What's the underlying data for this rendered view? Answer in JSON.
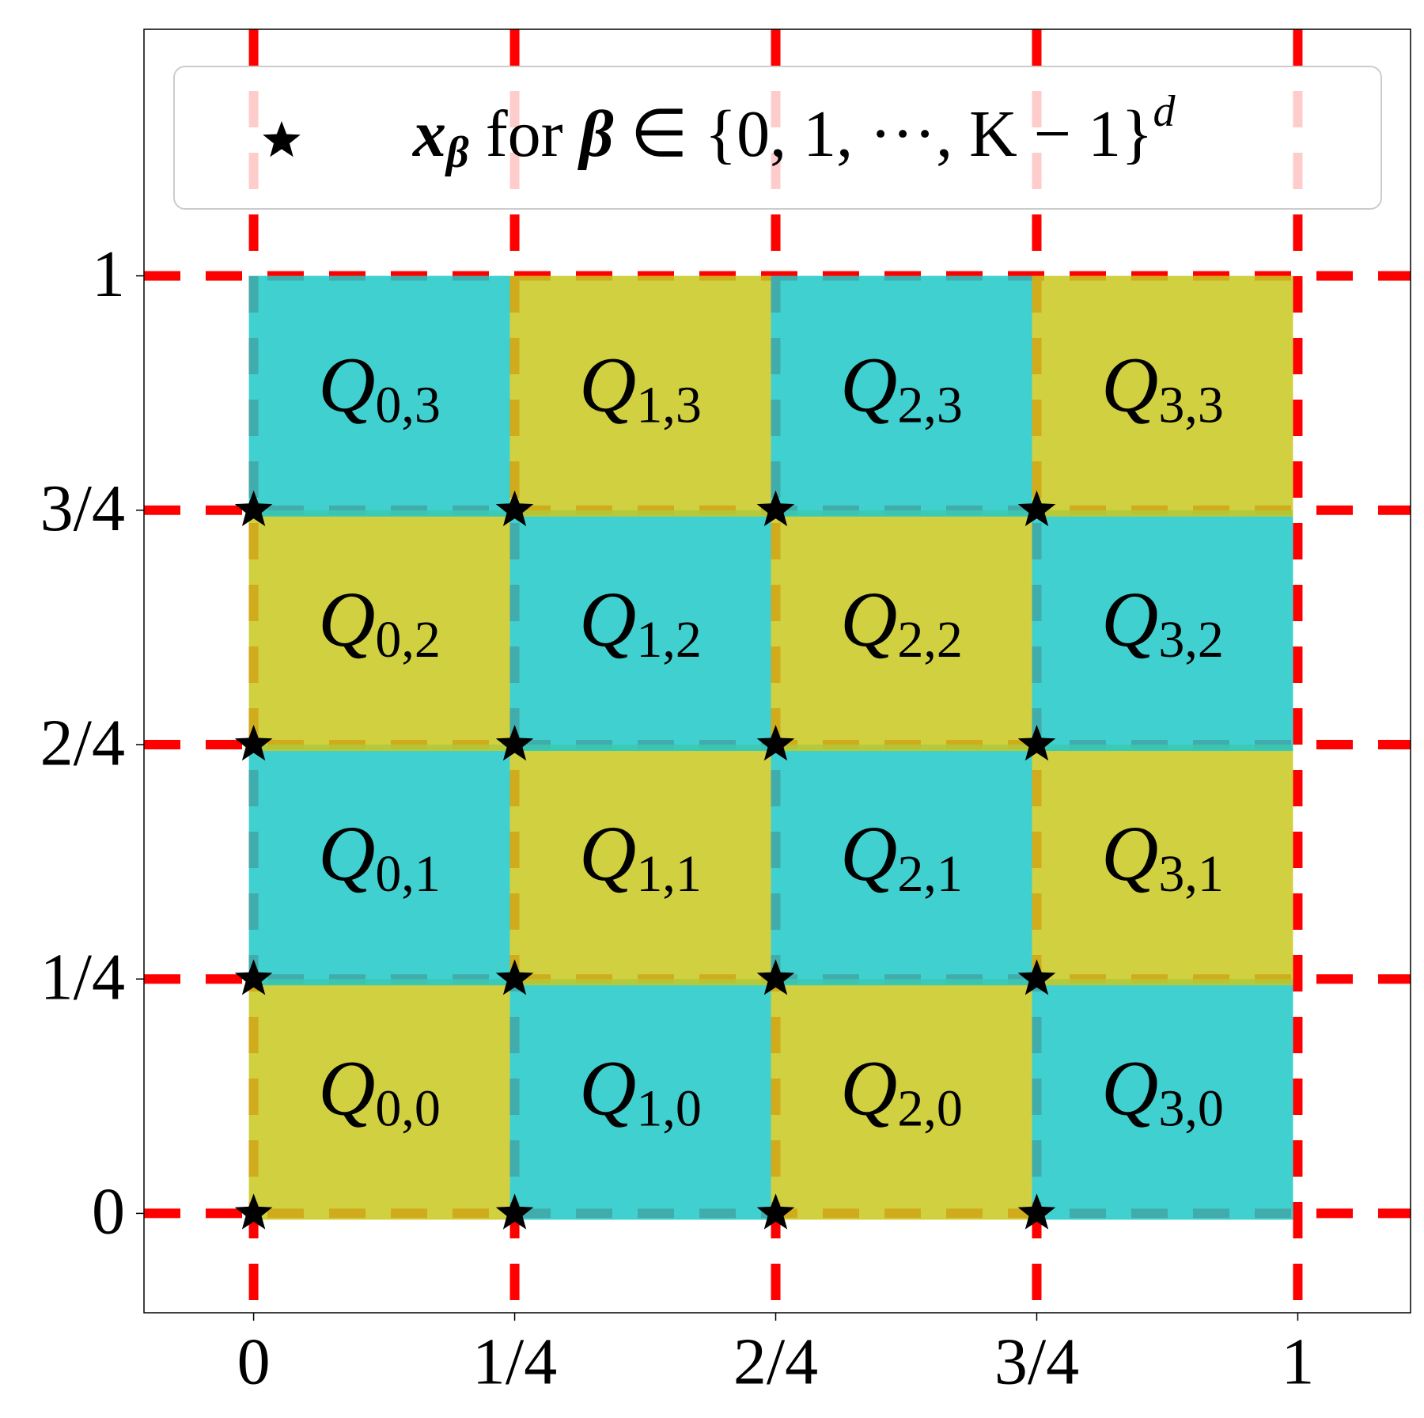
{
  "chart_data": {
    "type": "scatter",
    "xlim": [
      -0.105,
      1.108
    ],
    "ylim": [
      -0.106,
      1.263
    ],
    "xticks": [
      0,
      {
        "value": 0.25,
        "label": "1/4"
      },
      {
        "value": 0.5,
        "label": "2/4"
      },
      {
        "value": 0.75,
        "label": "3/4"
      },
      1
    ],
    "yticks": [
      0,
      {
        "value": 0.25,
        "label": "1/4"
      },
      {
        "value": 0.5,
        "label": "2/4"
      },
      {
        "value": 0.75,
        "label": "3/4"
      },
      1
    ],
    "grid": true,
    "grid_color": "#ff0000",
    "legend": "upper center",
    "cells": [
      {
        "label": "Q",
        "index": "0,0",
        "x": 0,
        "y": 0,
        "color": "#c8c822"
      },
      {
        "label": "Q",
        "index": "1,0",
        "x": 0.25,
        "y": 0,
        "color": "#22c8c8"
      },
      {
        "label": "Q",
        "index": "2,0",
        "x": 0.5,
        "y": 0,
        "color": "#c8c822"
      },
      {
        "label": "Q",
        "index": "3,0",
        "x": 0.75,
        "y": 0,
        "color": "#22c8c8"
      },
      {
        "label": "Q",
        "index": "0,1",
        "x": 0,
        "y": 0.25,
        "color": "#22c8c8"
      },
      {
        "label": "Q",
        "index": "1,1",
        "x": 0.25,
        "y": 0.25,
        "color": "#c8c822"
      },
      {
        "label": "Q",
        "index": "2,1",
        "x": 0.5,
        "y": 0.25,
        "color": "#22c8c8"
      },
      {
        "label": "Q",
        "index": "3,1",
        "x": 0.75,
        "y": 0.25,
        "color": "#c8c822"
      },
      {
        "label": "Q",
        "index": "0,2",
        "x": 0,
        "y": 0.5,
        "color": "#c8c822"
      },
      {
        "label": "Q",
        "index": "1,2",
        "x": 0.25,
        "y": 0.5,
        "color": "#22c8c8"
      },
      {
        "label": "Q",
        "index": "2,2",
        "x": 0.5,
        "y": 0.5,
        "color": "#c8c822"
      },
      {
        "label": "Q",
        "index": "3,2",
        "x": 0.75,
        "y": 0.5,
        "color": "#22c8c8"
      },
      {
        "label": "Q",
        "index": "0,3",
        "x": 0,
        "y": 0.75,
        "color": "#22c8c8"
      },
      {
        "label": "Q",
        "index": "1,3",
        "x": 0.25,
        "y": 0.75,
        "color": "#c8c822"
      },
      {
        "label": "Q",
        "index": "2,3",
        "x": 0.5,
        "y": 0.75,
        "color": "#22c8c8"
      },
      {
        "label": "Q",
        "index": "3,3",
        "x": 0.75,
        "y": 0.75,
        "color": "#c8c822"
      }
    ],
    "series": [
      {
        "name": [
          "x",
          "β",
          " for ",
          "β",
          " ∈ {0, 1, ···, K − 1}",
          "d"
        ],
        "color": "#000000",
        "x": [
          0,
          0.25,
          0.5,
          0.75,
          0,
          0.25,
          0.5,
          0.75,
          0,
          0.25,
          0.5,
          0.75,
          0,
          0.25,
          0.5,
          0.75
        ],
        "values": [
          0,
          0,
          0,
          0,
          0.25,
          0.25,
          0.25,
          0.25,
          0.5,
          0.5,
          0.5,
          0.5,
          0.75,
          0.75,
          0.75,
          0.75
        ]
      }
    ]
  }
}
